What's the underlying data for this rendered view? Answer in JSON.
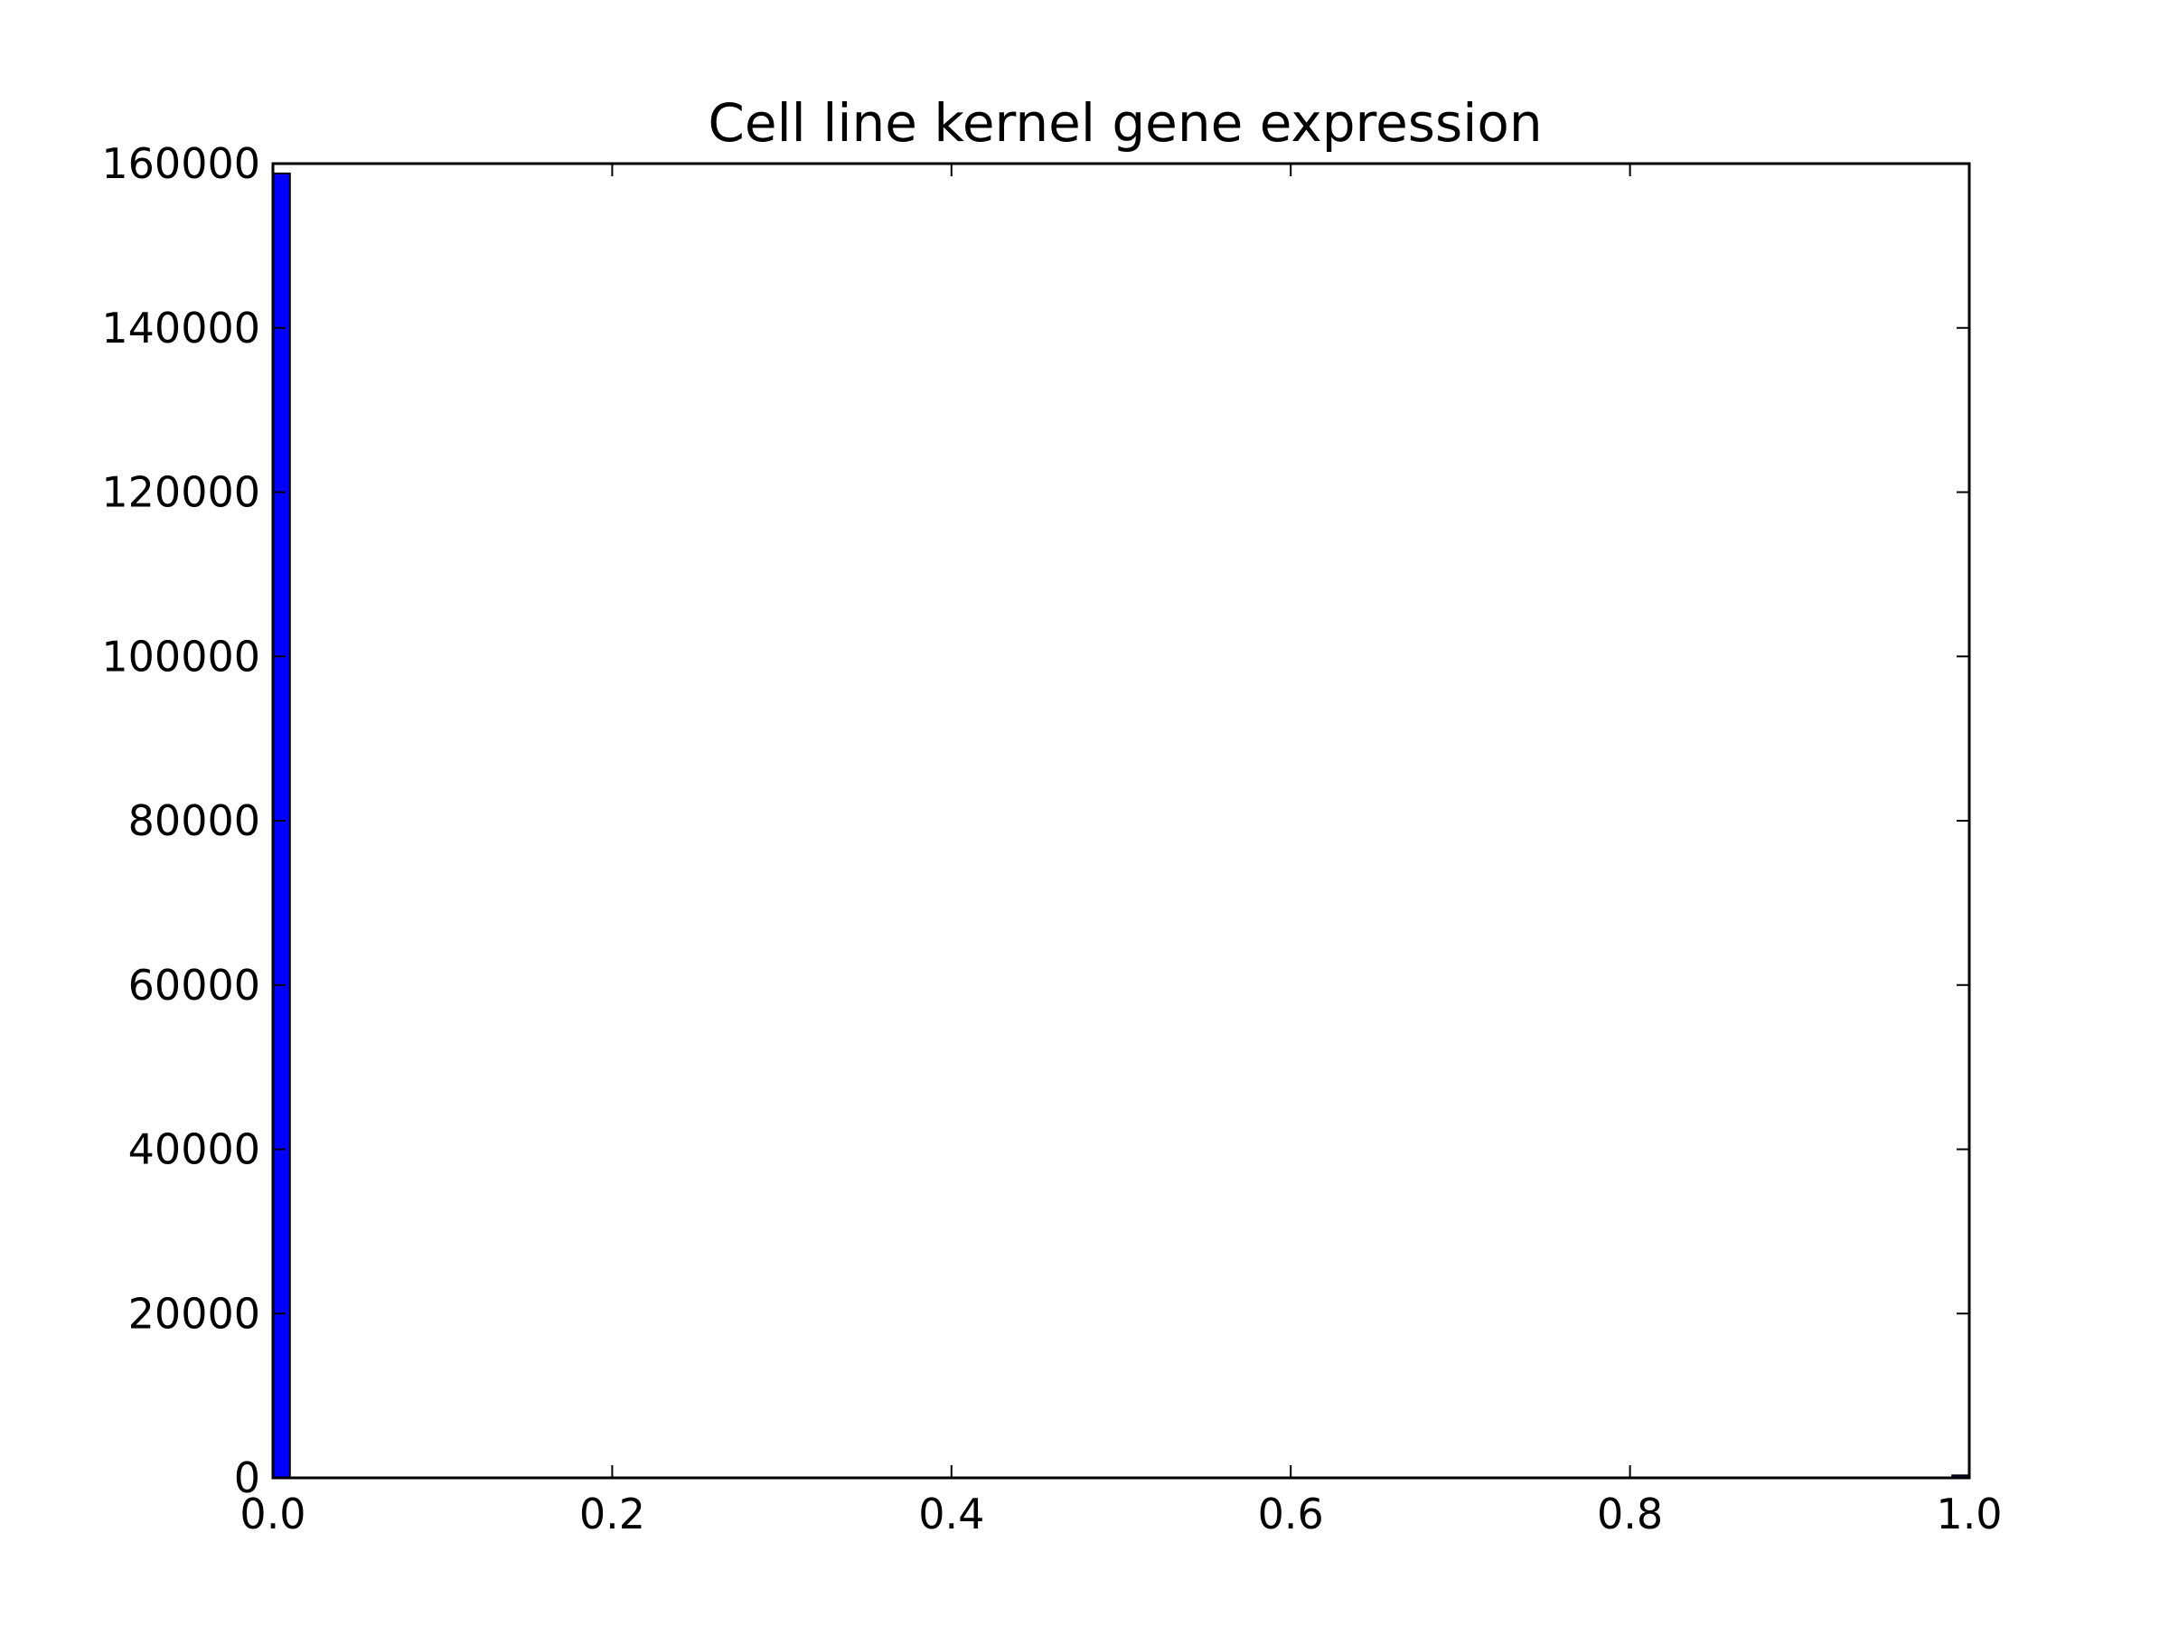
{
  "chart_data": {
    "type": "bar",
    "title": "Cell line kernel gene expression",
    "xlabel": "",
    "ylabel": "",
    "xlim": [
      0.0,
      1.0
    ],
    "ylim": [
      0,
      160000
    ],
    "x_ticks": [
      "0.0",
      "0.2",
      "0.4",
      "0.6",
      "0.8",
      "1.0"
    ],
    "y_ticks": [
      "0",
      "20000",
      "40000",
      "60000",
      "80000",
      "100000",
      "120000",
      "140000",
      "160000"
    ],
    "bins": [
      {
        "x_start": 0.0,
        "x_end": 0.01,
        "value": 158800
      },
      {
        "x_start": 0.99,
        "x_end": 1.0,
        "value": 300
      }
    ],
    "bar_color": "#0000ff",
    "grid": false,
    "legend": "none"
  }
}
